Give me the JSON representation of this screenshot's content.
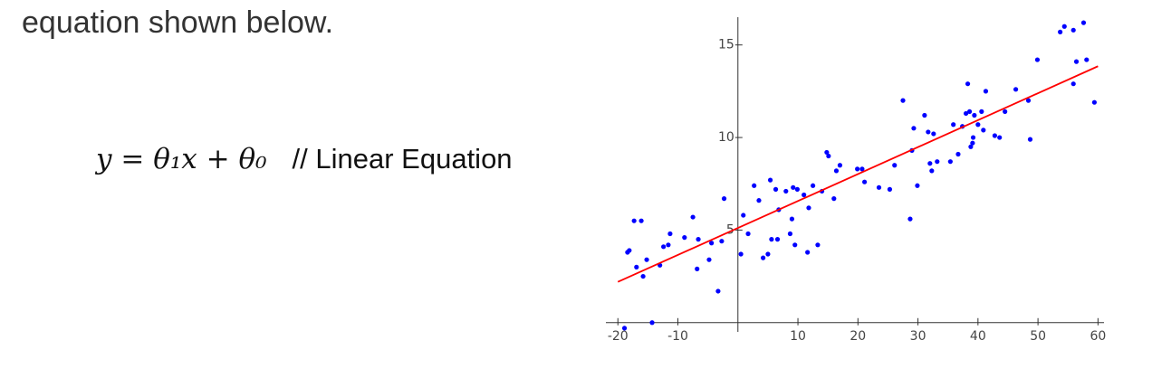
{
  "heading": "equation shown below.",
  "equation": "y = θ₁x + θ₀",
  "comment": "// Linear Equation",
  "chart_data": {
    "type": "scatter",
    "xlim": [
      -22,
      61
    ],
    "ylim": [
      -0.5,
      16.5
    ],
    "xticks": [
      -20,
      -10,
      10,
      20,
      30,
      40,
      50,
      60
    ],
    "yticks": [
      5,
      10,
      15
    ],
    "series": [
      {
        "type": "scatter",
        "color": "#0000ff",
        "x": [
          -18.9,
          -14.3,
          -18.4,
          -18.1,
          -17.3,
          -16.1,
          -16.9,
          -15.8,
          -15.2,
          -13,
          -12.4,
          -11.6,
          -11.3,
          -8.9,
          -7.5,
          -6.8,
          -6.6,
          -4.8,
          -4.4,
          -3.3,
          -2.7,
          -2.3,
          0.5,
          0.9,
          1.7,
          2.7,
          3.5,
          4.2,
          5,
          5.4,
          5.6,
          6.3,
          6.6,
          6.8,
          8,
          8.7,
          9,
          9.2,
          9.5,
          9.9,
          11,
          11.6,
          11.8,
          12.5,
          13.3,
          14,
          14.8,
          15.1,
          16,
          16.4,
          17,
          19.9,
          20.7,
          21.1,
          23.5,
          25.3,
          26.1,
          27.5,
          28.7,
          29,
          29.3,
          29.9,
          31.1,
          31.7,
          32.3,
          32.6,
          32,
          33.2,
          35.4,
          35.9,
          36.7,
          37.4,
          38,
          38.3,
          38.8,
          38.6,
          39.1,
          39.4,
          39.2,
          40,
          40.6,
          40.9,
          41.3,
          42.8,
          43.6,
          44.5,
          46.3,
          48.4,
          48.7,
          49.9,
          53.7,
          54.4,
          55.9,
          57.6,
          55.9,
          56.4,
          58.1,
          59.4
        ],
        "y": [
          -0.3,
          0,
          3.8,
          3.9,
          5.5,
          5.5,
          3,
          2.5,
          3.4,
          3.1,
          4.1,
          4.2,
          4.8,
          4.6,
          5.7,
          2.9,
          4.5,
          3.4,
          4.3,
          1.7,
          4.4,
          6.7,
          3.7,
          5.8,
          4.8,
          7.4,
          6.6,
          3.5,
          3.7,
          7.7,
          4.5,
          7.2,
          4.5,
          6.1,
          7.1,
          4.8,
          5.6,
          7.3,
          4.2,
          7.2,
          6.9,
          3.8,
          6.2,
          7.4,
          4.2,
          7.1,
          9.2,
          9,
          6.7,
          8.2,
          8.5,
          8.3,
          8.3,
          7.6,
          7.3,
          7.2,
          8.5,
          12,
          5.6,
          9.3,
          10.5,
          7.4,
          11.2,
          10.3,
          8.2,
          10.2,
          8.6,
          8.7,
          8.7,
          10.7,
          9.1,
          10.6,
          11.3,
          12.9,
          9.5,
          11.4,
          9.7,
          11.2,
          10,
          10.7,
          11.4,
          10.4,
          12.5,
          10.1,
          10,
          11.4,
          12.6,
          12,
          9.9,
          14.2,
          15.7,
          16,
          15.8,
          16.2,
          12.9,
          14.1,
          14.2,
          11.9
        ]
      },
      {
        "type": "line",
        "color": "#ff0000",
        "x": [
          -20,
          60
        ],
        "y": [
          2.2,
          13.85
        ]
      }
    ]
  }
}
